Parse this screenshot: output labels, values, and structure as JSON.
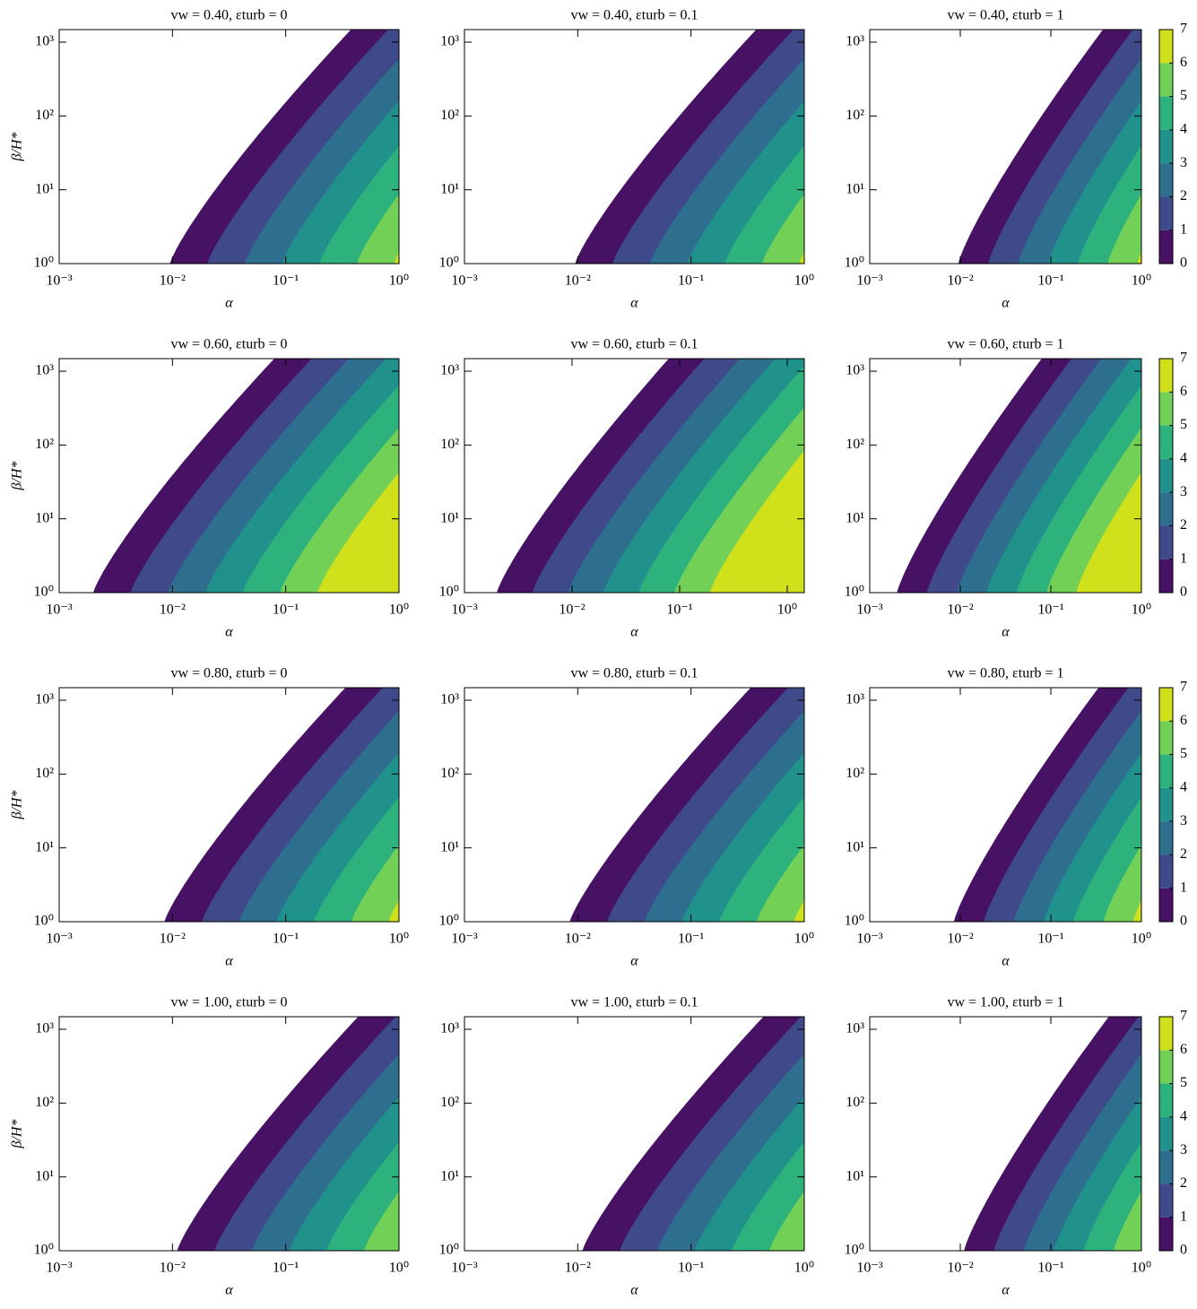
{
  "chart_data": [
    {
      "type": "contour",
      "title": "vw = 0.40, εturb = 0",
      "xlabel": "α",
      "ylabel": "β/H*",
      "xscale": "log",
      "yscale": "log",
      "xlim": [
        0.001,
        1
      ],
      "ylim": [
        1,
        1480
      ],
      "xticks": [
        {
          "value": 0.001,
          "label": "10⁻³"
        },
        {
          "value": 0.01,
          "label": "10⁻²"
        },
        {
          "value": 0.1,
          "label": "10⁻¹"
        },
        {
          "value": 1,
          "label": "10⁰"
        }
      ],
      "yticks": [
        {
          "value": 1,
          "label": "10⁰"
        },
        {
          "value": 10,
          "label": "10¹"
        },
        {
          "value": 100,
          "label": "10²"
        },
        {
          "value": 1000,
          "label": "10³"
        }
      ],
      "alpha_edge": 0.0095,
      "colors": [
        "#471164",
        "#3e4a89",
        "#2e6e8e",
        "#21918c",
        "#2db27d",
        "#73d056",
        "#d0e11c"
      ]
    },
    {
      "type": "contour",
      "title": "vw = 0.40, εturb = 0.1",
      "xlabel": "α",
      "xscale": "log",
      "yscale": "log",
      "xlim": [
        0.001,
        1
      ],
      "ylim": [
        1,
        1480
      ],
      "xticks": [
        {
          "value": 0.001,
          "label": "10⁻³"
        },
        {
          "value": 0.01,
          "label": "10⁻²"
        },
        {
          "value": 0.1,
          "label": "10⁻¹"
        },
        {
          "value": 1,
          "label": "10⁰"
        }
      ],
      "yticks": [
        {
          "value": 1,
          "label": "10⁰"
        },
        {
          "value": 10,
          "label": "10¹"
        },
        {
          "value": 100,
          "label": "10²"
        },
        {
          "value": 1000,
          "label": "10³"
        }
      ],
      "alpha_edge": 0.0095,
      "colors": [
        "#471164",
        "#3e4a89",
        "#2e6e8e",
        "#21918c",
        "#2db27d",
        "#73d056",
        "#d0e11c"
      ]
    },
    {
      "type": "contour",
      "title": "vw = 0.40, εturb = 1",
      "xlabel": "α",
      "xscale": "log",
      "yscale": "log",
      "xlim": [
        0.001,
        1
      ],
      "ylim": [
        1,
        1480
      ],
      "xticks": [
        {
          "value": 0.001,
          "label": "10⁻³"
        },
        {
          "value": 0.01,
          "label": "10⁻²"
        },
        {
          "value": 0.1,
          "label": "10⁻¹"
        },
        {
          "value": 1,
          "label": "10⁰"
        }
      ],
      "yticks": [
        {
          "value": 1,
          "label": "10⁰"
        },
        {
          "value": 10,
          "label": "10¹"
        },
        {
          "value": 100,
          "label": "10²"
        },
        {
          "value": 1000,
          "label": "10³"
        }
      ],
      "alpha_edge": 0.0095,
      "colors": [
        "#471164",
        "#3e4a89",
        "#2e6e8e",
        "#21918c",
        "#2db27d",
        "#73d056",
        "#d0e11c"
      ],
      "colorbar": {
        "lim": [
          0,
          7
        ],
        "ticks": [
          0,
          1,
          2,
          3,
          4,
          5,
          6,
          7
        ]
      }
    },
    {
      "type": "contour",
      "title": "vw = 0.60, εturb = 0",
      "xlabel": "α",
      "ylabel": "β/H*",
      "xscale": "log",
      "yscale": "log",
      "xlim": [
        0.001,
        1
      ],
      "ylim": [
        1,
        1480
      ],
      "xticks": [
        {
          "value": 0.001,
          "label": "10⁻³"
        },
        {
          "value": 0.01,
          "label": "10⁻²"
        },
        {
          "value": 0.1,
          "label": "10⁻¹"
        },
        {
          "value": 1,
          "label": "10⁰"
        }
      ],
      "yticks": [
        {
          "value": 1,
          "label": "10⁰"
        },
        {
          "value": 10,
          "label": "10¹"
        },
        {
          "value": 100,
          "label": "10²"
        },
        {
          "value": 1000,
          "label": "10³"
        }
      ],
      "alpha_edge": 0.002,
      "colors": [
        "#471164",
        "#3e4a89",
        "#2e6e8e",
        "#21918c",
        "#2db27d",
        "#73d056",
        "#d0e11c"
      ]
    },
    {
      "type": "contour",
      "title": "vw = 0.60, εturb = 0.1",
      "xlabel": "α",
      "xscale": "log",
      "yscale": "log",
      "xlim": [
        0.001,
        1.44
      ],
      "ylim": [
        1,
        1480
      ],
      "xticks": [
        {
          "value": 0.001,
          "label": "10⁻³"
        },
        {
          "value": 0.01,
          "label": "10⁻²"
        },
        {
          "value": 0.1,
          "label": "10⁻¹"
        },
        {
          "value": 1,
          "label": "10⁰"
        }
      ],
      "yticks": [
        {
          "value": 1,
          "label": "10⁰"
        },
        {
          "value": 10,
          "label": "10¹"
        },
        {
          "value": 100,
          "label": "10²"
        },
        {
          "value": 1000,
          "label": "10³"
        }
      ],
      "alpha_edge": 0.002,
      "colors": [
        "#471164",
        "#3e4a89",
        "#2e6e8e",
        "#21918c",
        "#2db27d",
        "#73d056",
        "#d0e11c"
      ]
    },
    {
      "type": "contour",
      "title": "vw = 0.60, εturb = 1",
      "xlabel": "α",
      "xscale": "log",
      "yscale": "log",
      "xlim": [
        0.001,
        1
      ],
      "ylim": [
        1,
        1480
      ],
      "xticks": [
        {
          "value": 0.001,
          "label": "10⁻³"
        },
        {
          "value": 0.01,
          "label": "10⁻²"
        },
        {
          "value": 0.1,
          "label": "10⁻¹"
        },
        {
          "value": 1,
          "label": "10⁰"
        }
      ],
      "yticks": [
        {
          "value": 1,
          "label": "10⁰"
        },
        {
          "value": 10,
          "label": "10¹"
        },
        {
          "value": 100,
          "label": "10²"
        },
        {
          "value": 1000,
          "label": "10³"
        }
      ],
      "alpha_edge": 0.002,
      "colors": [
        "#471164",
        "#3e4a89",
        "#2e6e8e",
        "#21918c",
        "#2db27d",
        "#73d056",
        "#d0e11c"
      ],
      "colorbar": {
        "lim": [
          0,
          7
        ],
        "ticks": [
          0,
          1,
          2,
          3,
          4,
          5,
          6,
          7
        ]
      }
    },
    {
      "type": "contour",
      "title": "vw = 0.80, εturb = 0",
      "xlabel": "α",
      "ylabel": "β/H*",
      "xscale": "log",
      "yscale": "log",
      "xlim": [
        0.001,
        1
      ],
      "ylim": [
        1,
        1480
      ],
      "xticks": [
        {
          "value": 0.001,
          "label": "10⁻³"
        },
        {
          "value": 0.01,
          "label": "10⁻²"
        },
        {
          "value": 0.1,
          "label": "10⁻¹"
        },
        {
          "value": 1,
          "label": "10⁰"
        }
      ],
      "yticks": [
        {
          "value": 1,
          "label": "10⁰"
        },
        {
          "value": 10,
          "label": "10¹"
        },
        {
          "value": 100,
          "label": "10²"
        },
        {
          "value": 1000,
          "label": "10³"
        }
      ],
      "alpha_edge": 0.0085,
      "colors": [
        "#471164",
        "#3e4a89",
        "#2e6e8e",
        "#21918c",
        "#2db27d",
        "#73d056",
        "#d0e11c"
      ]
    },
    {
      "type": "contour",
      "title": "vw = 0.80, εturb = 0.1",
      "xlabel": "α",
      "xscale": "log",
      "yscale": "log",
      "xlim": [
        0.001,
        1
      ],
      "ylim": [
        1,
        1480
      ],
      "xticks": [
        {
          "value": 0.001,
          "label": "10⁻³"
        },
        {
          "value": 0.01,
          "label": "10⁻²"
        },
        {
          "value": 0.1,
          "label": "10⁻¹"
        },
        {
          "value": 1,
          "label": "10⁰"
        }
      ],
      "yticks": [
        {
          "value": 1,
          "label": "10⁰"
        },
        {
          "value": 10,
          "label": "10¹"
        },
        {
          "value": 100,
          "label": "10²"
        },
        {
          "value": 1000,
          "label": "10³"
        }
      ],
      "alpha_edge": 0.0085,
      "colors": [
        "#471164",
        "#3e4a89",
        "#2e6e8e",
        "#21918c",
        "#2db27d",
        "#73d056",
        "#d0e11c"
      ]
    },
    {
      "type": "contour",
      "title": "vw = 0.80, εturb = 1",
      "xlabel": "α",
      "xscale": "log",
      "yscale": "log",
      "xlim": [
        0.001,
        1
      ],
      "ylim": [
        1,
        1480
      ],
      "xticks": [
        {
          "value": 0.001,
          "label": "10⁻³"
        },
        {
          "value": 0.01,
          "label": "10⁻²"
        },
        {
          "value": 0.1,
          "label": "10⁻¹"
        },
        {
          "value": 1,
          "label": "10⁰"
        }
      ],
      "yticks": [
        {
          "value": 1,
          "label": "10⁰"
        },
        {
          "value": 10,
          "label": "10¹"
        },
        {
          "value": 100,
          "label": "10²"
        },
        {
          "value": 1000,
          "label": "10³"
        }
      ],
      "alpha_edge": 0.0085,
      "colors": [
        "#471164",
        "#3e4a89",
        "#2e6e8e",
        "#21918c",
        "#2db27d",
        "#73d056",
        "#d0e11c"
      ],
      "colorbar": {
        "lim": [
          0,
          7
        ],
        "ticks": [
          0,
          1,
          2,
          3,
          4,
          5,
          6,
          7
        ]
      }
    },
    {
      "type": "contour",
      "title": "vw = 1.00, εturb = 0",
      "xlabel": "α",
      "ylabel": "β/H*",
      "xscale": "log",
      "yscale": "log",
      "xlim": [
        0.001,
        1
      ],
      "ylim": [
        1,
        1480
      ],
      "xticks": [
        {
          "value": 0.001,
          "label": "10⁻³"
        },
        {
          "value": 0.01,
          "label": "10⁻²"
        },
        {
          "value": 0.1,
          "label": "10⁻¹"
        },
        {
          "value": 1,
          "label": "10⁰"
        }
      ],
      "yticks": [
        {
          "value": 1,
          "label": "10⁰"
        },
        {
          "value": 10,
          "label": "10¹"
        },
        {
          "value": 100,
          "label": "10²"
        },
        {
          "value": 1000,
          "label": "10³"
        }
      ],
      "alpha_edge": 0.011,
      "colors": [
        "#471164",
        "#3e4a89",
        "#2e6e8e",
        "#21918c",
        "#2db27d",
        "#73d056",
        "#d0e11c"
      ]
    },
    {
      "type": "contour",
      "title": "vw = 1.00, εturb = 0.1",
      "xlabel": "α",
      "xscale": "log",
      "yscale": "log",
      "xlim": [
        0.001,
        1
      ],
      "ylim": [
        1,
        1480
      ],
      "xticks": [
        {
          "value": 0.001,
          "label": "10⁻³"
        },
        {
          "value": 0.01,
          "label": "10⁻²"
        },
        {
          "value": 0.1,
          "label": "10⁻¹"
        },
        {
          "value": 1,
          "label": "10⁰"
        }
      ],
      "yticks": [
        {
          "value": 1,
          "label": "10⁰"
        },
        {
          "value": 10,
          "label": "10¹"
        },
        {
          "value": 100,
          "label": "10²"
        },
        {
          "value": 1000,
          "label": "10³"
        }
      ],
      "alpha_edge": 0.011,
      "colors": [
        "#471164",
        "#3e4a89",
        "#2e6e8e",
        "#21918c",
        "#2db27d",
        "#73d056",
        "#d0e11c"
      ]
    },
    {
      "type": "contour",
      "title": "vw = 1.00, εturb = 1",
      "xlabel": "α",
      "xscale": "log",
      "yscale": "log",
      "xlim": [
        0.001,
        1
      ],
      "ylim": [
        1,
        1480
      ],
      "xticks": [
        {
          "value": 0.001,
          "label": "10⁻³"
        },
        {
          "value": 0.01,
          "label": "10⁻²"
        },
        {
          "value": 0.1,
          "label": "10⁻¹"
        },
        {
          "value": 1,
          "label": "10⁰"
        }
      ],
      "yticks": [
        {
          "value": 1,
          "label": "10⁰"
        },
        {
          "value": 10,
          "label": "10¹"
        },
        {
          "value": 100,
          "label": "10²"
        },
        {
          "value": 1000,
          "label": "10³"
        }
      ],
      "alpha_edge": 0.011,
      "colors": [
        "#471164",
        "#3e4a89",
        "#2e6e8e",
        "#21918c",
        "#2db27d",
        "#73d056",
        "#d0e11c"
      ],
      "colorbar": {
        "lim": [
          0,
          7
        ],
        "ticks": [
          0,
          1,
          2,
          3,
          4,
          5,
          6,
          7
        ]
      }
    }
  ]
}
